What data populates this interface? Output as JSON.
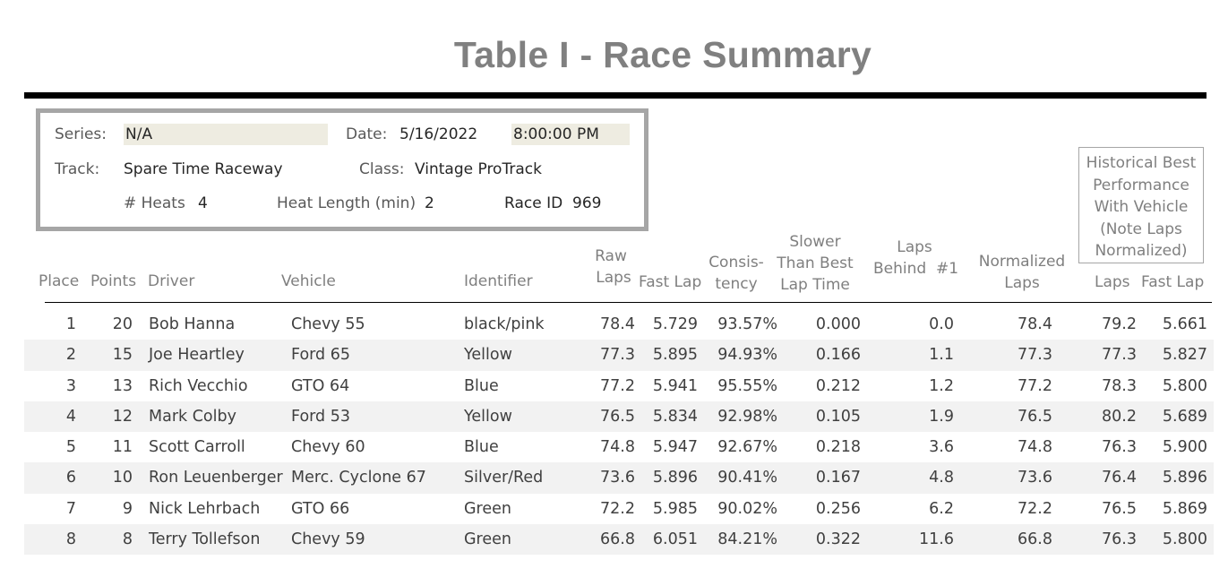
{
  "title": "Table I - Race Summary",
  "info": {
    "series_label": "Series:",
    "series_value": "N/A",
    "date_label": "Date:",
    "date_value": "5/16/2022",
    "time_value": "8:00:00 PM",
    "track_label": "Track:",
    "track_value": "Spare Time Raceway",
    "class_label": "Class:",
    "class_value": "Vintage ProTrack",
    "heats_label": "# Heats",
    "heats_value": "4",
    "heat_length_label": "Heat Length (min)",
    "heat_length_value": "2",
    "race_id_label": "Race ID",
    "race_id_value": "969"
  },
  "historical_header": "Historical Best Performance With Vehicle (Note Laps Normalized)",
  "headers": {
    "place": "Place",
    "points": "Points",
    "driver": "Driver",
    "vehicle": "Vehicle",
    "identifier": "Identifier",
    "raw_laps_1": "Raw",
    "raw_laps_2": "Laps",
    "fast_lap": "Fast Lap",
    "consistency_1": "Consis-",
    "consistency_2": "tency",
    "slower_1": "Slower",
    "slower_2": "Than Best",
    "slower_3": "Lap Time",
    "behind_1": "Laps",
    "behind_2": "Behind  #1",
    "normalized_1": "Normalized",
    "normalized_2": "Laps",
    "hist_laps": "Laps",
    "hist_fast_lap": "Fast Lap"
  },
  "rows": [
    {
      "place": "1",
      "points": "20",
      "driver": "Bob Hanna",
      "vehicle": "Chevy 55",
      "identifier": "black/pink",
      "raw_laps": "78.4",
      "fast_lap": "5.729",
      "consistency": "93.57%",
      "slower": "0.000",
      "behind": "0.0",
      "normalized": "78.4",
      "hist_laps": "79.2",
      "hist_fast": "5.661"
    },
    {
      "place": "2",
      "points": "15",
      "driver": "Joe Heartley",
      "vehicle": "Ford 65",
      "identifier": "Yellow",
      "raw_laps": "77.3",
      "fast_lap": "5.895",
      "consistency": "94.93%",
      "slower": "0.166",
      "behind": "1.1",
      "normalized": "77.3",
      "hist_laps": "77.3",
      "hist_fast": "5.827"
    },
    {
      "place": "3",
      "points": "13",
      "driver": "Rich Vecchio",
      "vehicle": "GTO 64",
      "identifier": "Blue",
      "raw_laps": "77.2",
      "fast_lap": "5.941",
      "consistency": "95.55%",
      "slower": "0.212",
      "behind": "1.2",
      "normalized": "77.2",
      "hist_laps": "78.3",
      "hist_fast": "5.800"
    },
    {
      "place": "4",
      "points": "12",
      "driver": "Mark Colby",
      "vehicle": "Ford 53",
      "identifier": "Yellow",
      "raw_laps": "76.5",
      "fast_lap": "5.834",
      "consistency": "92.98%",
      "slower": "0.105",
      "behind": "1.9",
      "normalized": "76.5",
      "hist_laps": "80.2",
      "hist_fast": "5.689"
    },
    {
      "place": "5",
      "points": "11",
      "driver": "Scott Carroll",
      "vehicle": "Chevy 60",
      "identifier": "Blue",
      "raw_laps": "74.8",
      "fast_lap": "5.947",
      "consistency": "92.67%",
      "slower": "0.218",
      "behind": "3.6",
      "normalized": "74.8",
      "hist_laps": "76.3",
      "hist_fast": "5.900"
    },
    {
      "place": "6",
      "points": "10",
      "driver": "Ron Leuenberger",
      "vehicle": "Merc. Cyclone 67",
      "identifier": "Silver/Red",
      "raw_laps": "73.6",
      "fast_lap": "5.896",
      "consistency": "90.41%",
      "slower": "0.167",
      "behind": "4.8",
      "normalized": "73.6",
      "hist_laps": "76.4",
      "hist_fast": "5.896"
    },
    {
      "place": "7",
      "points": "9",
      "driver": "Nick Lehrbach",
      "vehicle": "GTO 66",
      "identifier": "Green",
      "raw_laps": "72.2",
      "fast_lap": "5.985",
      "consistency": "90.02%",
      "slower": "0.256",
      "behind": "6.2",
      "normalized": "72.2",
      "hist_laps": "76.5",
      "hist_fast": "5.869"
    },
    {
      "place": "8",
      "points": "8",
      "driver": "Terry Tollefson",
      "vehicle": "Chevy 59",
      "identifier": "Green",
      "raw_laps": "66.8",
      "fast_lap": "6.051",
      "consistency": "84.21%",
      "slower": "0.322",
      "behind": "11.6",
      "normalized": "66.8",
      "hist_laps": "76.3",
      "hist_fast": "5.800"
    }
  ]
}
